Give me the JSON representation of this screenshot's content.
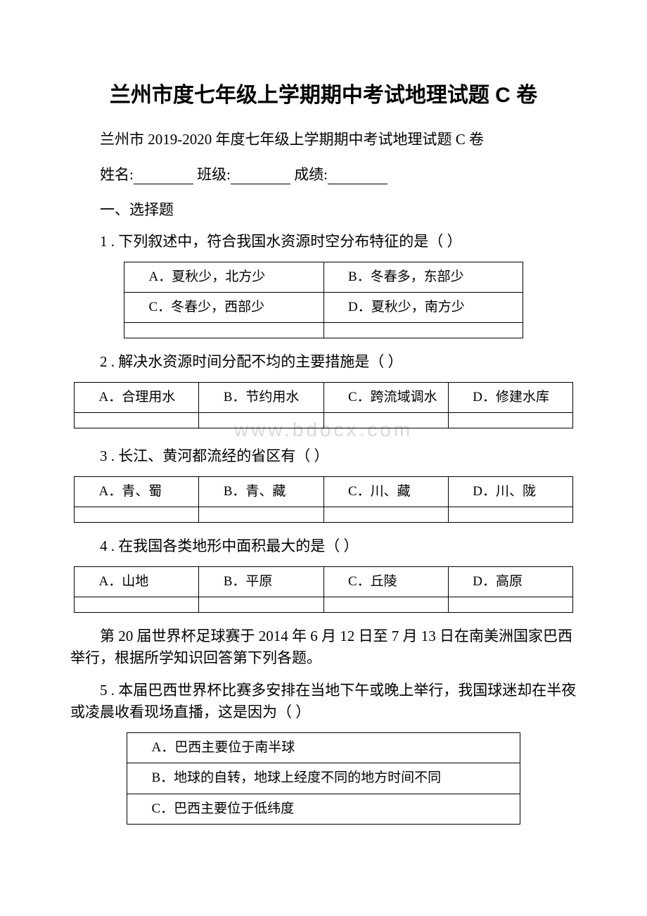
{
  "title": "兰州市度七年级上学期期中考试地理试题 C 卷",
  "subtitle": "兰州市 2019-2020 年度七年级上学期期中考试地理试题 C 卷",
  "form": {
    "name_label": "姓名:",
    "class_label": "班级:",
    "score_label": "成绩:"
  },
  "section1": "一、选择题",
  "q1": {
    "text": "1 . 下列叙述中，符合我国水资源时空分布特征的是（ ）",
    "opts": {
      "a": "A．夏秋少，北方少",
      "b": "B．冬春多，东部少",
      "c": "C．冬春少，西部少",
      "d": "D．夏秋少，南方少"
    }
  },
  "q2": {
    "text": "2 . 解决水资源时间分配不均的主要措施是（ ）",
    "opts": {
      "a": "A．合理用水",
      "b": "B．节约用水",
      "c": "C．跨流域调水",
      "d": "D．修建水库"
    }
  },
  "watermark": "www.bdocx.com",
  "q3": {
    "text": "3 . 长江、黄河都流经的省区有（ ）",
    "opts": {
      "a": "A．青、蜀",
      "b": "B．青、藏",
      "c": "C．川、藏",
      "d": "D．川、陇"
    }
  },
  "q4": {
    "text": "4 . 在我国各类地形中面积最大的是（ ）",
    "opts": {
      "a": "A．山地",
      "b": "B．平原",
      "c": "C．丘陵",
      "d": "D．高原"
    }
  },
  "passage1": "第 20 届世界杯足球赛于 2014 年 6 月 12 日至 7 月 13 日在南美洲国家巴西举行，根据所学知识回答第下列各题。",
  "q5": {
    "text": "5 . 本届巴西世界杯比赛多安排在当地下午或晚上举行，我国球迷却在半夜或凌晨收看现场直播，这是因为（ ）",
    "opts": {
      "a": "A．巴西主要位于南半球",
      "b": "B．地球的自转，地球上经度不同的地方时间不同",
      "c": "C．巴西主要位于低纬度"
    }
  }
}
